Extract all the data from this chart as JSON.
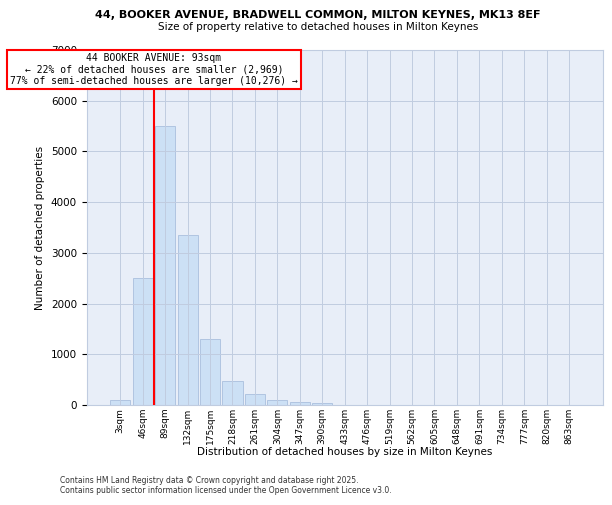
{
  "title_line1": "44, BOOKER AVENUE, BRADWELL COMMON, MILTON KEYNES, MK13 8EF",
  "title_line2": "Size of property relative to detached houses in Milton Keynes",
  "xlabel": "Distribution of detached houses by size in Milton Keynes",
  "ylabel": "Number of detached properties",
  "categories": [
    "3sqm",
    "46sqm",
    "89sqm",
    "132sqm",
    "175sqm",
    "218sqm",
    "261sqm",
    "304sqm",
    "347sqm",
    "390sqm",
    "433sqm",
    "476sqm",
    "519sqm",
    "562sqm",
    "605sqm",
    "648sqm",
    "691sqm",
    "734sqm",
    "777sqm",
    "820sqm",
    "863sqm"
  ],
  "values": [
    100,
    2500,
    5500,
    3350,
    1300,
    480,
    220,
    100,
    55,
    30,
    0,
    0,
    0,
    0,
    0,
    0,
    0,
    0,
    0,
    0,
    0
  ],
  "bar_color": "#cce0f5",
  "bar_edge_color": "#a0b8d8",
  "vline_index": 2,
  "vline_color": "red",
  "annotation_text": "44 BOOKER AVENUE: 93sqm\n← 22% of detached houses are smaller (2,969)\n77% of semi-detached houses are larger (10,276) →",
  "annotation_box_color": "white",
  "annotation_box_edge": "red",
  "ylim": [
    0,
    7000
  ],
  "yticks": [
    0,
    1000,
    2000,
    3000,
    4000,
    5000,
    6000,
    7000
  ],
  "footer_line1": "Contains HM Land Registry data © Crown copyright and database right 2025.",
  "footer_line2": "Contains public sector information licensed under the Open Government Licence v3.0.",
  "background_color": "#e8eef8",
  "grid_color": "#c0cce0"
}
